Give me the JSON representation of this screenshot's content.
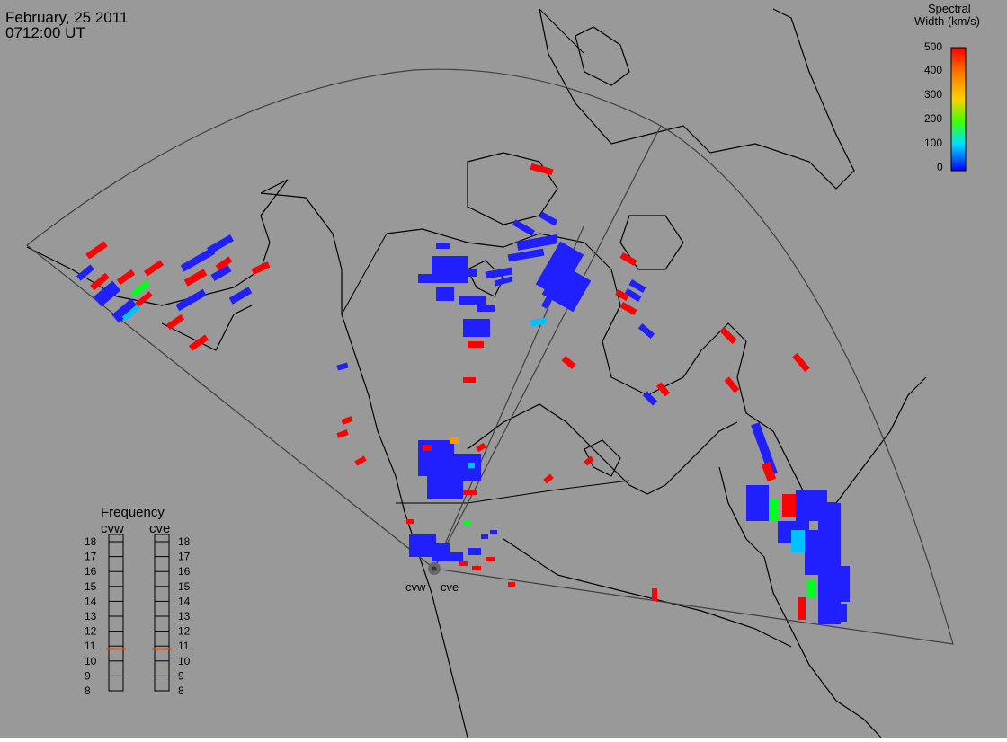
{
  "header": {
    "date": "February, 25 2011",
    "time": "0712:00 UT"
  },
  "colorbar": {
    "title_line1": "Spectral",
    "title_line2": "Width (km/s)",
    "ticks": [
      "500",
      "400",
      "300",
      "200",
      "100",
      "0"
    ],
    "gradient": [
      "#ff0000",
      "#ff8000",
      "#ffd000",
      "#40ff00",
      "#00e0ff",
      "#0000ff"
    ]
  },
  "radars": {
    "west": "cvw",
    "east": "cve"
  },
  "frequency": {
    "title": "Frequency",
    "col1": "cvw",
    "col2": "cve",
    "ticks": [
      "18",
      "17",
      "16",
      "15",
      "14",
      "13",
      "12",
      "11",
      "10",
      "9",
      "8"
    ],
    "cvw_value": 10.8,
    "cve_value": 10.8,
    "marker_color": "#ff4400"
  },
  "colors": {
    "background": "#999999",
    "low": "#2020ff",
    "high": "#ff0000",
    "mid": "#00ff20",
    "cyan": "#00c0ff",
    "orange": "#ff9900"
  }
}
